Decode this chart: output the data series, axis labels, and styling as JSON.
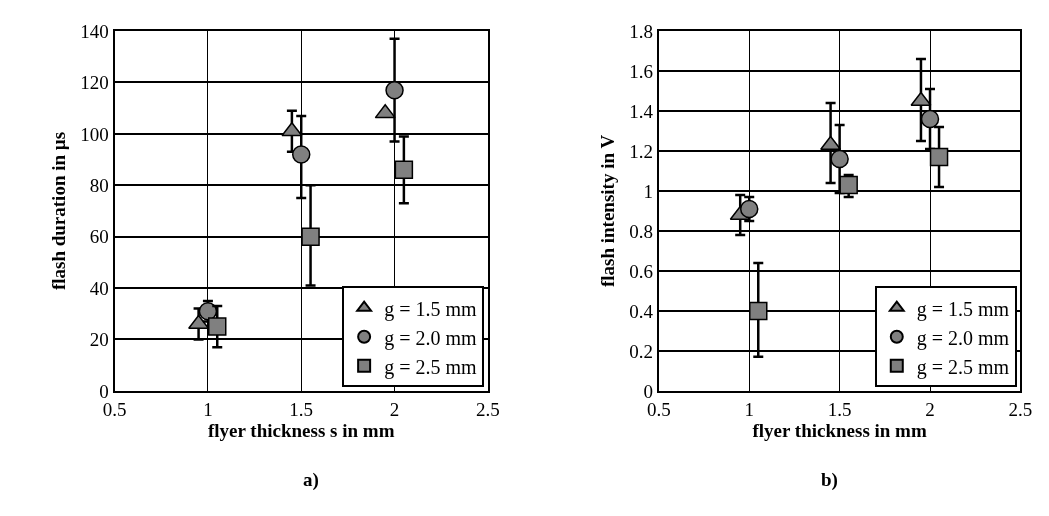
{
  "chart_data": [
    {
      "type": "scatter",
      "xlabel": "flyer thickness s in mm",
      "ylabel": "flash duration in µs",
      "annotations": [
        "a)"
      ],
      "xlim": [
        0.5,
        2.5
      ],
      "xticks": [
        0.5,
        1,
        1.5,
        2,
        2.5
      ],
      "ylim": [
        0,
        140
      ],
      "yticks": [
        0,
        20,
        40,
        60,
        80,
        100,
        120,
        140
      ],
      "grid": true,
      "legend": "bottom right",
      "series": [
        {
          "name": "g = 1.5 mm",
          "color": "#808080",
          "marker": "triangle",
          "x": [
            0.95,
            1.45,
            1.95
          ],
          "values": [
            26,
            101,
            108
          ],
          "errors": [
            [
              20,
              32
            ],
            [
              93,
              109
            ],
            null
          ]
        },
        {
          "name": "g = 2.0 mm",
          "color": "#808080",
          "marker": "circle",
          "x": [
            1.0,
            1.5,
            2.0
          ],
          "values": [
            31,
            92,
            117
          ],
          "errors": [
            [
              27,
              35
            ],
            [
              75,
              107
            ],
            [
              97,
              137
            ]
          ]
        },
        {
          "name": "g = 2.5 mm",
          "color": "#808080",
          "marker": "square",
          "x": [
            1.05,
            1.55,
            2.05
          ],
          "values": [
            25,
            60,
            86
          ],
          "errors": [
            [
              17,
              33
            ],
            [
              41,
              80
            ],
            [
              73,
              99
            ]
          ]
        }
      ]
    },
    {
      "type": "scatter",
      "xlabel": "flyer thickness in mm",
      "ylabel": "flash intensity in V",
      "annotations": [
        "b)"
      ],
      "xlim": [
        0.5,
        2.5
      ],
      "xticks": [
        0.5,
        1,
        1.5,
        2,
        2.5
      ],
      "ylim": [
        0,
        1.8
      ],
      "yticks": [
        0,
        0.2,
        0.4,
        0.6,
        0.8,
        1,
        1.2,
        1.4,
        1.6,
        1.8
      ],
      "grid": true,
      "legend": "bottom right",
      "series": [
        {
          "name": "g = 1.5 mm",
          "color": "#808080",
          "marker": "triangle",
          "x": [
            0.95,
            1.45,
            1.95
          ],
          "values": [
            0.88,
            1.23,
            1.45
          ],
          "errors": [
            [
              0.78,
              0.98
            ],
            [
              1.04,
              1.44
            ],
            [
              1.25,
              1.66
            ]
          ]
        },
        {
          "name": "g = 2.0 mm",
          "color": "#808080",
          "marker": "circle",
          "x": [
            1.0,
            1.5,
            2.0
          ],
          "values": [
            0.91,
            1.16,
            1.36
          ],
          "errors": [
            [
              0.85,
              0.97
            ],
            [
              0.99,
              1.33
            ],
            [
              1.21,
              1.51
            ]
          ]
        },
        {
          "name": "g = 2.5 mm",
          "color": "#808080",
          "marker": "square",
          "x": [
            1.05,
            1.55,
            2.05
          ],
          "values": [
            0.4,
            1.03,
            1.17
          ],
          "errors": [
            [
              0.17,
              0.64
            ],
            [
              0.97,
              1.08
            ],
            [
              1.02,
              1.32
            ]
          ]
        }
      ]
    }
  ]
}
